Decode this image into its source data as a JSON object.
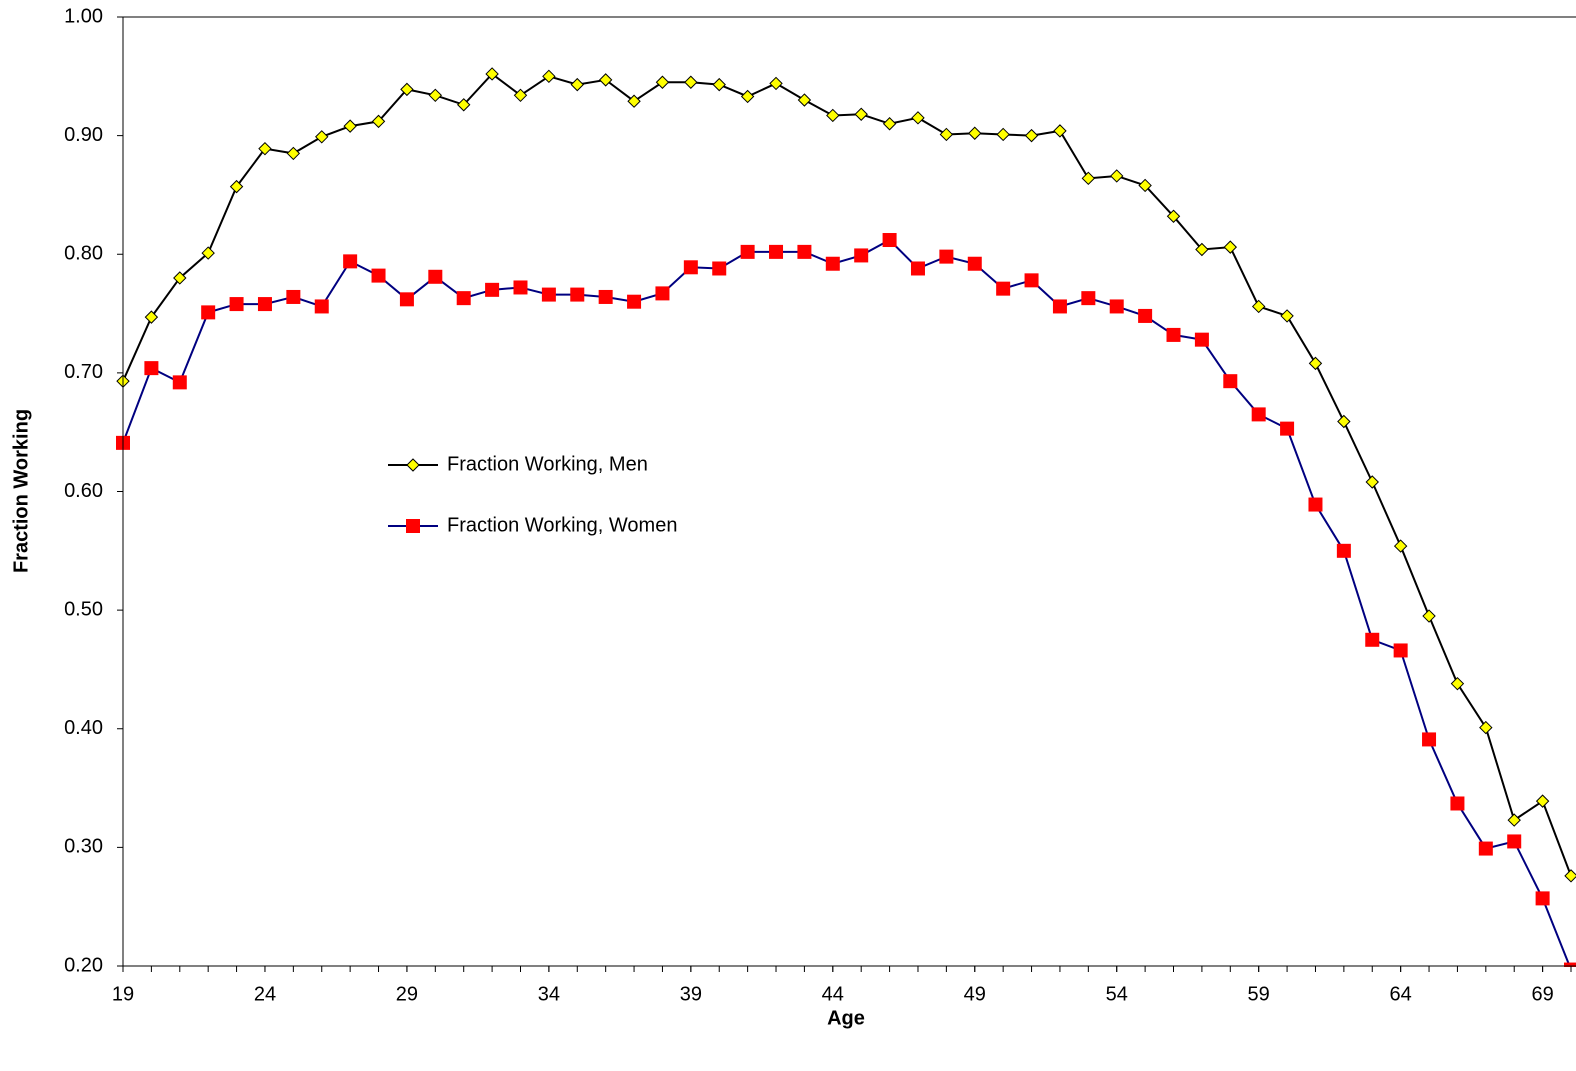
{
  "chart_data": {
    "type": "line",
    "xlabel": "Age",
    "ylabel": "Fraction Working",
    "x": [
      19,
      20,
      21,
      22,
      23,
      24,
      25,
      26,
      27,
      28,
      29,
      30,
      31,
      32,
      33,
      34,
      35,
      36,
      37,
      38,
      39,
      40,
      41,
      42,
      43,
      44,
      45,
      46,
      47,
      48,
      49,
      50,
      51,
      52,
      53,
      54,
      55,
      56,
      57,
      58,
      59,
      60,
      61,
      62,
      63,
      64,
      65,
      66,
      67,
      68,
      69,
      70
    ],
    "xlim": [
      19,
      70
    ],
    "xticks": [
      19,
      24,
      29,
      34,
      39,
      44,
      49,
      54,
      59,
      64,
      69
    ],
    "ylim": [
      0.2,
      1.0
    ],
    "yticks": [
      {
        "value": 0.2,
        "label": "0.20"
      },
      {
        "value": 0.3,
        "label": "0.30"
      },
      {
        "value": 0.4,
        "label": "0.40"
      },
      {
        "value": 0.5,
        "label": "0.50"
      },
      {
        "value": 0.6,
        "label": "0.60"
      },
      {
        "value": 0.7,
        "label": "0.70"
      },
      {
        "value": 0.8,
        "label": "0.80"
      },
      {
        "value": 0.9,
        "label": "0.90"
      },
      {
        "value": 1.0,
        "label": "1.00"
      }
    ],
    "legend": "left-middle",
    "series": [
      {
        "name": "Fraction Working, Men",
        "color": "#000000",
        "marker": "diamond",
        "marker_color": "#ffff00",
        "values": [
          0.693,
          0.747,
          0.78,
          0.801,
          0.857,
          0.889,
          0.885,
          0.899,
          0.908,
          0.912,
          0.939,
          0.934,
          0.926,
          0.952,
          0.934,
          0.95,
          0.943,
          0.947,
          0.929,
          0.945,
          0.945,
          0.943,
          0.933,
          0.944,
          0.93,
          0.917,
          0.918,
          0.91,
          0.915,
          0.901,
          0.902,
          0.901,
          0.9,
          0.904,
          0.864,
          0.866,
          0.858,
          0.832,
          0.804,
          0.806,
          0.756,
          0.748,
          0.708,
          0.659,
          0.608,
          0.554,
          0.495,
          0.438,
          0.401,
          0.323,
          0.339,
          0.276
        ]
      },
      {
        "name": "Fraction Working, Women",
        "color": "#000080",
        "marker": "square",
        "marker_color": "#ff0000",
        "values": [
          0.641,
          0.704,
          0.692,
          0.751,
          0.758,
          0.758,
          0.764,
          0.756,
          0.794,
          0.782,
          0.762,
          0.781,
          0.763,
          0.77,
          0.772,
          0.766,
          0.766,
          0.764,
          0.76,
          0.767,
          0.789,
          0.788,
          0.802,
          0.802,
          0.802,
          0.792,
          0.799,
          0.812,
          0.788,
          0.798,
          0.792,
          0.771,
          0.778,
          0.756,
          0.763,
          0.756,
          0.748,
          0.732,
          0.728,
          0.693,
          0.665,
          0.653,
          0.589,
          0.55,
          0.475,
          0.466,
          0.391,
          0.337,
          0.299,
          0.305,
          0.257,
          0.197
        ]
      }
    ]
  }
}
